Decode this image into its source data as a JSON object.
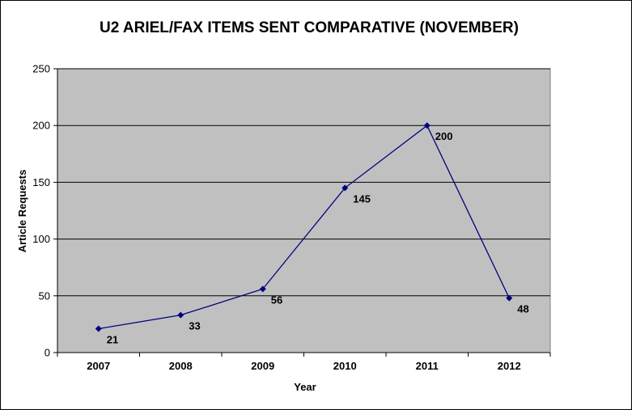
{
  "chart_data": {
    "type": "line",
    "title": "U2 ARIEL/FAX ITEMS SENT COMPARATIVE (NOVEMBER)",
    "xlabel": "Year",
    "ylabel": "Article Requests",
    "categories": [
      "2007",
      "2008",
      "2009",
      "2010",
      "2011",
      "2012"
    ],
    "series": [
      {
        "values": [
          21,
          33,
          56,
          145,
          200,
          48
        ]
      }
    ],
    "ylim": [
      0,
      250
    ],
    "yticks": [
      0,
      50,
      100,
      150,
      200,
      250
    ],
    "y_tick_labels": [
      "0",
      "50",
      "100",
      "150",
      "200",
      "250"
    ],
    "grid": true,
    "data_labels": [
      "21",
      "33",
      "56",
      "145",
      "200",
      "48"
    ],
    "colors": {
      "plot_background": "#c0c0c0",
      "line": "#000080",
      "gridline": "#000000"
    }
  }
}
